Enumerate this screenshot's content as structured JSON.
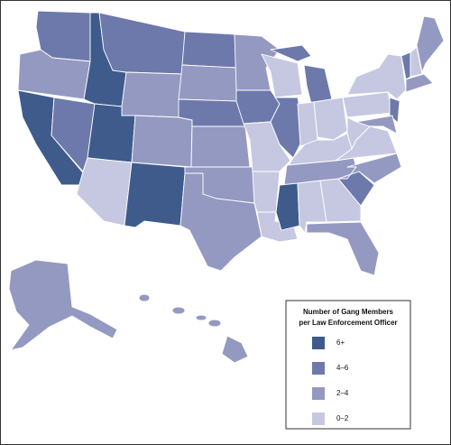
{
  "legend": {
    "title": [
      "Number of Gang Members",
      "per Law Enforcement Officer"
    ],
    "items": [
      {
        "label": "6+",
        "color": "#3e5b8c"
      },
      {
        "label": "4–6",
        "color": "#6c79aa"
      },
      {
        "label": "2–4",
        "color": "#9499c2"
      },
      {
        "label": "0–2",
        "color": "#c6c8e2"
      }
    ]
  }
}
